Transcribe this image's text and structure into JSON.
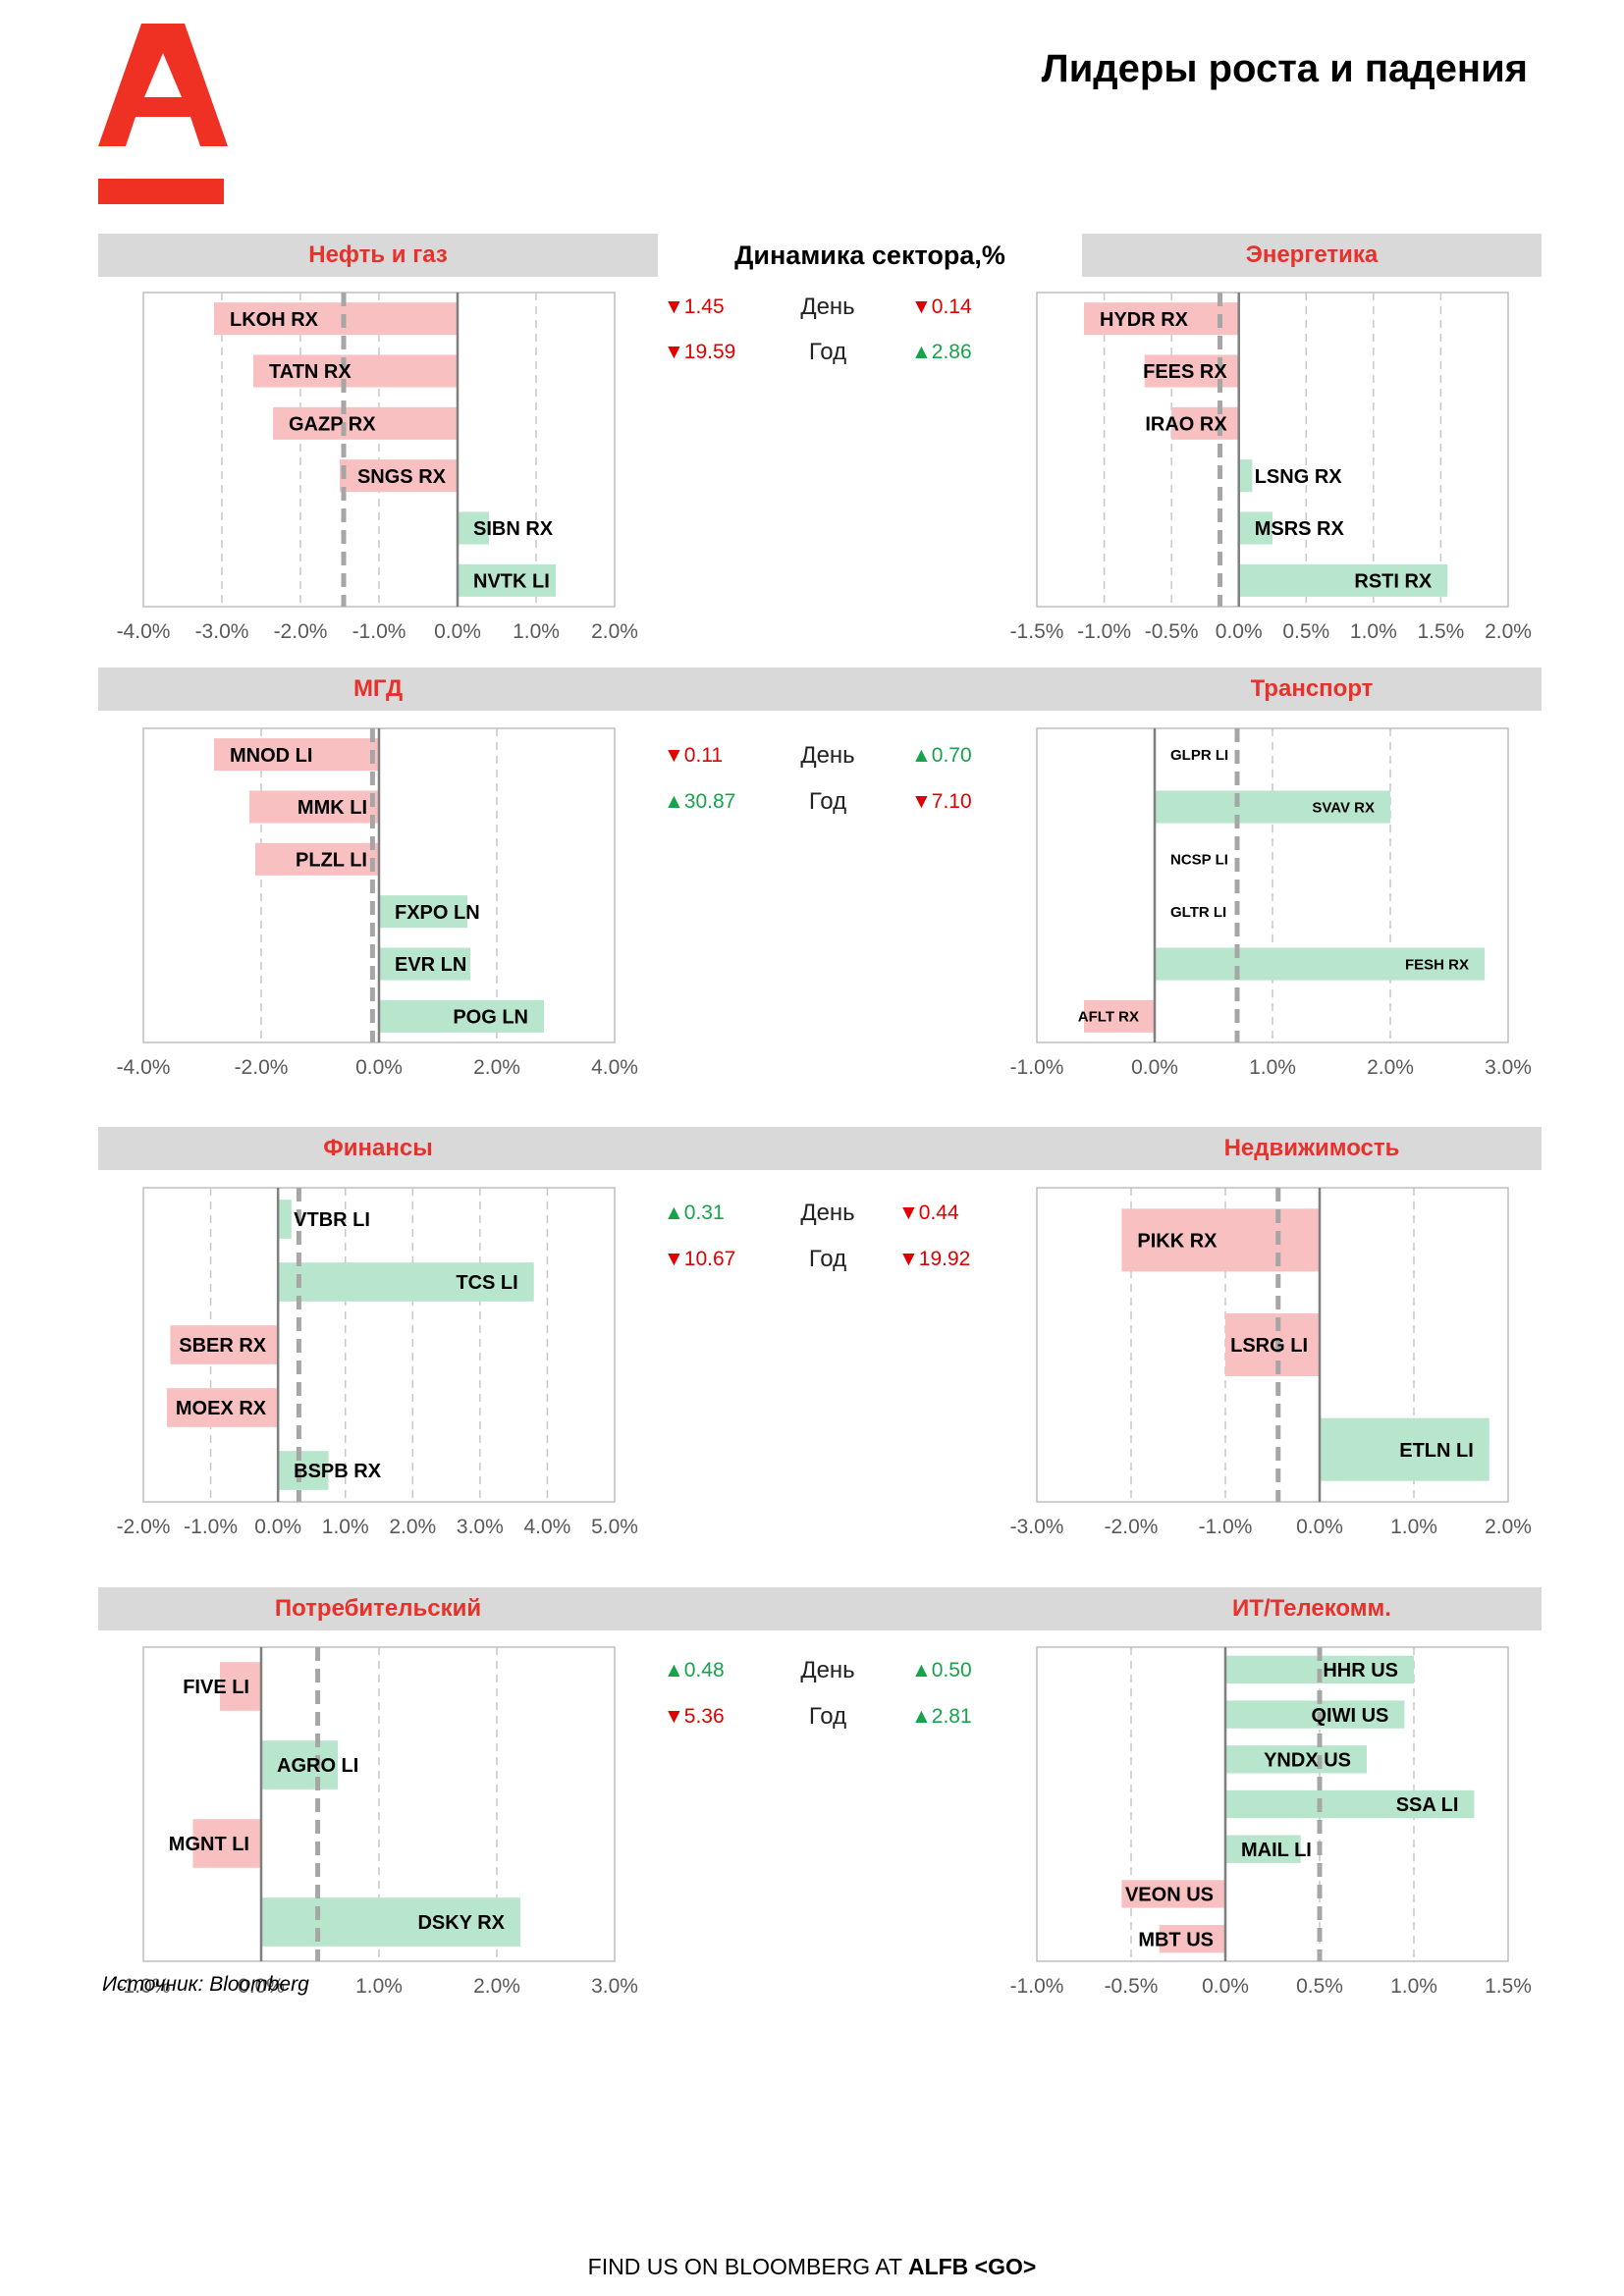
{
  "page": {
    "title": "Лидеры роста и падения",
    "dynamics_header": "Динамика сектора,%",
    "source": "Источник: Bloomberg",
    "footer_prefix": "FIND US ON BLOOMBERG AT ",
    "footer_bold": "ALFB <GO>"
  },
  "colors": {
    "accent": "#e8312a",
    "pos_bar": "#b8e6cc",
    "neg_bar": "#f8c0c0",
    "band": "#d9d9d9",
    "up": "#16a34a",
    "down": "#e00000"
  },
  "sectors": [
    {
      "name": "Нефть и газ",
      "stats": {
        "day_label": "День",
        "year_label": "Год",
        "day": {
          "dir": "down",
          "value": "1.45"
        },
        "year": {
          "dir": "down",
          "value": "19.59"
        }
      }
    },
    {
      "name": "Энергетика",
      "stats": {
        "day": {
          "dir": "down",
          "value": "0.14"
        },
        "year": {
          "dir": "up",
          "value": "2.86"
        }
      }
    },
    {
      "name": "МГД",
      "stats": {
        "day_label": "День",
        "year_label": "Год",
        "day": {
          "dir": "down",
          "value": "0.11"
        },
        "year": {
          "dir": "up",
          "value": "30.87"
        }
      }
    },
    {
      "name": "Транспорт",
      "stats": {
        "day": {
          "dir": "up",
          "value": "0.70"
        },
        "year": {
          "dir": "down",
          "value": "7.10"
        }
      }
    },
    {
      "name": "Финансы",
      "stats": {
        "day_label": "День",
        "year_label": "Год",
        "day": {
          "dir": "up",
          "value": "0.31"
        },
        "year": {
          "dir": "down",
          "value": "10.67"
        }
      }
    },
    {
      "name": "Недвижимость",
      "stats": {
        "day": {
          "dir": "down",
          "value": "0.44"
        },
        "year": {
          "dir": "down",
          "value": "19.92"
        }
      }
    },
    {
      "name": "Потребительский",
      "stats": {
        "day_label": "День",
        "year_label": "Год",
        "day": {
          "dir": "up",
          "value": "0.48"
        },
        "year": {
          "dir": "down",
          "value": "5.36"
        }
      }
    },
    {
      "name": "ИТ/Телекомм.",
      "stats": {
        "day": {
          "dir": "up",
          "value": "0.50"
        },
        "year": {
          "dir": "up",
          "value": "2.81"
        }
      }
    }
  ],
  "chart_data": [
    {
      "type": "bar",
      "orientation": "horizontal",
      "title": "Нефть и газ",
      "categories": [
        "LKOH RX",
        "TATN RX",
        "GAZP RX",
        "SNGS RX",
        "SIBN RX",
        "NVTK LI"
      ],
      "values": [
        -3.1,
        -2.6,
        -2.35,
        -1.5,
        0.4,
        1.25
      ],
      "sector_change": -1.45,
      "xlim": [
        -4,
        2
      ],
      "xticks": [
        -4,
        -3,
        -2,
        -1,
        0,
        1,
        2
      ],
      "xtick_labels": [
        "-4.0%",
        "-3.0%",
        "-2.0%",
        "-1.0%",
        "0.0%",
        "1.0%",
        "2.0%"
      ],
      "grid": true
    },
    {
      "type": "bar",
      "orientation": "horizontal",
      "title": "Энергетика",
      "categories": [
        "HYDR RX",
        "FEES RX",
        "IRAO RX",
        "LSNG RX",
        "MSRS RX",
        "RSTI RX"
      ],
      "values": [
        -1.15,
        -0.7,
        -0.5,
        0.1,
        0.25,
        1.55
      ],
      "sector_change": -0.14,
      "xlim": [
        -1.5,
        2
      ],
      "xticks": [
        -1.5,
        -1,
        -0.5,
        0,
        0.5,
        1,
        1.5,
        2
      ],
      "xtick_labels": [
        "-1.5%",
        "-1.0%",
        "-0.5%",
        "0.0%",
        "0.5%",
        "1.0%",
        "1.5%",
        "2.0%"
      ],
      "grid": true
    },
    {
      "type": "bar",
      "orientation": "horizontal",
      "title": "МГД",
      "categories": [
        "MNOD LI",
        "MMK LI",
        "PLZL LI",
        "FXPO LN",
        "EVR LN",
        "POG LN"
      ],
      "values": [
        -2.8,
        -2.2,
        -2.1,
        1.5,
        1.55,
        2.8
      ],
      "sector_change": -0.11,
      "xlim": [
        -4,
        4
      ],
      "xticks": [
        -4,
        -2,
        0,
        2,
        4
      ],
      "xtick_labels": [
        "-4.0%",
        "-2.0%",
        "0.0%",
        "2.0%",
        "4.0%"
      ],
      "grid": true
    },
    {
      "type": "bar",
      "orientation": "horizontal",
      "title": "Транспорт",
      "categories": [
        "GLPR LI",
        "SVAV RX",
        "NCSP LI",
        "GLTR LI",
        "FESH RX",
        "AFLT RX"
      ],
      "values": [
        0,
        2.0,
        0,
        0,
        2.8,
        -0.6
      ],
      "sector_change": 0.7,
      "xlim": [
        -1,
        3
      ],
      "xticks": [
        -1,
        0,
        1,
        2,
        3
      ],
      "xtick_labels": [
        "-1.0%",
        "0.0%",
        "1.0%",
        "2.0%",
        "3.0%"
      ],
      "grid": true
    },
    {
      "type": "bar",
      "orientation": "horizontal",
      "title": "Финансы",
      "categories": [
        "VTBR LI",
        "TCS LI",
        "SBER RX",
        "MOEX RX",
        "BSPB RX"
      ],
      "values": [
        0.2,
        3.8,
        -1.6,
        -1.65,
        0.75
      ],
      "sector_change": 0.31,
      "xlim": [
        -2,
        5
      ],
      "xticks": [
        -2,
        -1,
        0,
        1,
        2,
        3,
        4,
        5
      ],
      "xtick_labels": [
        "-2.0%",
        "-1.0%",
        "0.0%",
        "1.0%",
        "2.0%",
        "3.0%",
        "4.0%",
        "5.0%"
      ],
      "grid": true
    },
    {
      "type": "bar",
      "orientation": "horizontal",
      "title": "Недвижимость",
      "categories": [
        "PIKK RX",
        "LSRG LI",
        "ETLN LI"
      ],
      "values": [
        -2.1,
        -1.0,
        1.8
      ],
      "sector_change": -0.44,
      "xlim": [
        -3,
        2
      ],
      "xticks": [
        -3,
        -2,
        -1,
        0,
        1,
        2
      ],
      "xtick_labels": [
        "-3.0%",
        "-2.0%",
        "-1.0%",
        "0.0%",
        "1.0%",
        "2.0%"
      ],
      "grid": true
    },
    {
      "type": "bar",
      "orientation": "horizontal",
      "title": "Потребительский",
      "categories": [
        "FIVE LI",
        "AGRO LI",
        "MGNT LI",
        "DSKY RX"
      ],
      "values": [
        -0.35,
        0.65,
        -0.58,
        2.2
      ],
      "sector_change": 0.48,
      "xlim": [
        -1,
        3
      ],
      "xticks": [
        -1,
        0,
        1,
        2,
        3
      ],
      "xtick_labels": [
        "-1.0%",
        "0.0%",
        "1.0%",
        "2.0%",
        "3.0%"
      ],
      "grid": true
    },
    {
      "type": "bar",
      "orientation": "horizontal",
      "title": "ИТ/Телекомм.",
      "categories": [
        "HHR US",
        "QIWI US",
        "YNDX US",
        "SSA LI",
        "MAIL LI",
        "VEON US",
        "MBT US"
      ],
      "values": [
        1.0,
        0.95,
        0.75,
        1.32,
        0.4,
        -0.55,
        -0.35
      ],
      "sector_change": 0.5,
      "xlim": [
        -1,
        1.5
      ],
      "xticks": [
        -1,
        -0.5,
        0,
        0.5,
        1,
        1.5
      ],
      "xtick_labels": [
        "-1.0%",
        "-0.5%",
        "0.0%",
        "0.5%",
        "1.0%",
        "1.5%"
      ],
      "grid": true
    }
  ]
}
